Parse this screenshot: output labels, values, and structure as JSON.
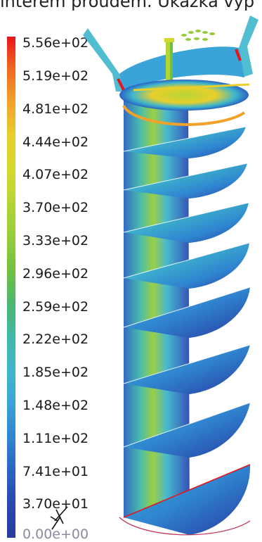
{
  "caption": "interem proudem. Ukázka vyp",
  "legend": {
    "ticks": [
      "5.56e+02",
      "5.19e+02",
      "4.81e+02",
      "4.44e+02",
      "4.07e+02",
      "3.70e+02",
      "3.33e+02",
      "2.96e+02",
      "2.59e+02",
      "2.22e+02",
      "1.85e+02",
      "1.48e+02",
      "1.11e+02",
      "7.41e+01",
      "3.70e+01",
      "0.00e+00"
    ],
    "colors": [
      "#e8141c",
      "#f0641e",
      "#f2a228",
      "#e8cf2c",
      "#d2d92e",
      "#b5d534",
      "#96cc3a",
      "#70c040",
      "#4cb670",
      "#3fb8a8",
      "#3eb6cc",
      "#3aa4d8",
      "#2f84d0",
      "#2a62c2",
      "#2a48b2",
      "#283aa0"
    ]
  },
  "scene": {
    "geometry_icons": [
      "funnel-icon",
      "spiral-disc-icon",
      "nozzle-icon",
      "outlet-ring-icon"
    ],
    "axis_triad": "xyz-axis-icon"
  }
}
